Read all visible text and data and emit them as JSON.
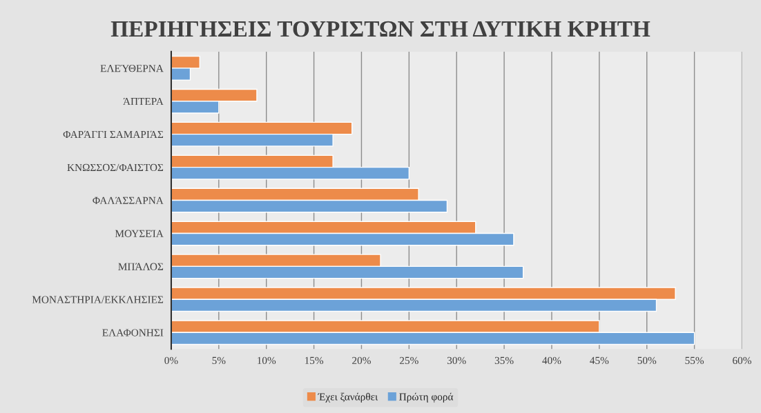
{
  "chart_data": {
    "type": "bar",
    "orientation": "horizontal",
    "title": "ΠΕΡΙΗΓΗΣΕΙΣ ΤΟΥΡΙΣΤΩΝ ΣΤΗ ΔΥΤΙΚΗ ΚΡΗΤΗ",
    "categories": [
      "ΕΛΕΎΘΕΡΝΑ",
      "ΆΠΤΕΡΑ",
      "ΦΑΡΆΓΓΙ ΣΑΜΑΡΙΆΣ",
      "ΚΝΩΣΣΟΣ/ΦΑΙΣΤΟΣ",
      "ΦΑΛΆΣΣΑΡΝΑ",
      "ΜΟΥΣΕΊΑ",
      "ΜΠΆΛΟΣ",
      "ΜΟΝΑΣΤΗΡΙΑ/ΕΚΚΛΗΣΙΕΣ",
      "ΕΛΑΦΟΝΗΣΙ"
    ],
    "series": [
      {
        "name": "Έχει ξανάρθει",
        "color": "#ed8b4a",
        "values": [
          3,
          9,
          19,
          17,
          26,
          32,
          22,
          53,
          45
        ]
      },
      {
        "name": "Πρώτη φορά",
        "color": "#6ca2d8",
        "values": [
          2,
          5,
          17,
          25,
          29,
          36,
          37,
          51,
          55
        ]
      }
    ],
    "xlim": [
      0,
      60
    ],
    "xticks": [
      {
        "value": 0,
        "label": "0%"
      },
      {
        "value": 5,
        "label": "5%"
      },
      {
        "value": 10,
        "label": "10%"
      },
      {
        "value": 15,
        "label": "15%"
      },
      {
        "value": 20,
        "label": "20%"
      },
      {
        "value": 25,
        "label": "25%"
      },
      {
        "value": 30,
        "label": "30%"
      },
      {
        "value": 35,
        "label": "35%"
      },
      {
        "value": 40,
        "label": "40%"
      },
      {
        "value": 45,
        "label": "45%"
      },
      {
        "value": 50,
        "label": "50%"
      },
      {
        "value": 55,
        "label": "55%"
      },
      {
        "value": 60,
        "label": "60%"
      }
    ],
    "grid": "x",
    "legend": "bottom"
  }
}
